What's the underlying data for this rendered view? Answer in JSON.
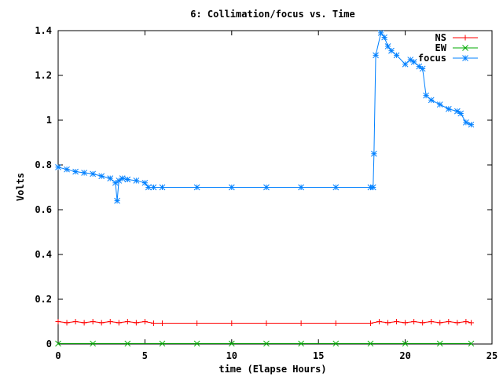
{
  "chart_data": {
    "type": "line",
    "title": "6: Collimation/focus vs. Time",
    "xlabel": "time (Elapse Hours)",
    "ylabel": "Volts",
    "xlim": [
      0,
      25
    ],
    "ylim": [
      0,
      1.4
    ],
    "x_ticks": [
      "0",
      "5",
      "10",
      "15",
      "20",
      "25"
    ],
    "y_ticks": [
      "0",
      "0.2",
      "0.4",
      "0.6",
      "0.8",
      "1",
      "1.2",
      "1.4"
    ],
    "legend_position": "top-right",
    "grid": false,
    "series": [
      {
        "name": "NS",
        "color": "#ff0000",
        "marker": "plus",
        "x": [
          0,
          0.5,
          1,
          1.5,
          2,
          2.5,
          3,
          3.5,
          4,
          4.5,
          5,
          5.5,
          6,
          8,
          10,
          12,
          14,
          16,
          18,
          18.5,
          19,
          19.5,
          20,
          20.5,
          21,
          21.5,
          22,
          22.5,
          23,
          23.5,
          23.8
        ],
        "values": [
          0.1,
          0.095,
          0.1,
          0.095,
          0.1,
          0.095,
          0.1,
          0.095,
          0.1,
          0.095,
          0.1,
          0.093,
          0.093,
          0.093,
          0.093,
          0.093,
          0.093,
          0.093,
          0.093,
          0.1,
          0.095,
          0.1,
          0.095,
          0.1,
          0.095,
          0.1,
          0.095,
          0.1,
          0.095,
          0.1,
          0.095
        ]
      },
      {
        "name": "EW",
        "color": "#00aa00",
        "marker": "cross",
        "x": [
          0,
          2,
          4,
          6,
          8,
          10,
          12,
          14,
          16,
          18,
          20,
          22,
          23.8
        ],
        "values": [
          0.002,
          0.002,
          0.002,
          0.002,
          0.002,
          0.002,
          0.002,
          0.002,
          0.002,
          0.002,
          0.002,
          0.002,
          0.002
        ]
      },
      {
        "name": "focus",
        "color": "#0080ff",
        "marker": "star",
        "x": [
          0,
          0.5,
          1,
          1.5,
          2,
          2.5,
          3,
          3.3,
          3.4,
          3.5,
          3.7,
          4,
          4.5,
          5,
          5.2,
          5.5,
          6,
          8,
          10,
          12,
          14,
          16,
          18,
          18.15,
          18.2,
          18.3,
          18.6,
          18.8,
          19,
          19.2,
          19.5,
          20,
          20.3,
          20.5,
          20.8,
          21,
          21.2,
          21.5,
          22,
          22.5,
          23,
          23.2,
          23.5,
          23.8
        ],
        "values": [
          0.79,
          0.78,
          0.77,
          0.765,
          0.76,
          0.75,
          0.74,
          0.72,
          0.64,
          0.73,
          0.74,
          0.735,
          0.73,
          0.72,
          0.7,
          0.7,
          0.7,
          0.7,
          0.7,
          0.7,
          0.7,
          0.7,
          0.7,
          0.7,
          0.85,
          1.29,
          1.39,
          1.37,
          1.33,
          1.31,
          1.29,
          1.25,
          1.27,
          1.26,
          1.24,
          1.23,
          1.11,
          1.09,
          1.07,
          1.05,
          1.04,
          1.03,
          0.99,
          0.98
        ]
      }
    ]
  }
}
